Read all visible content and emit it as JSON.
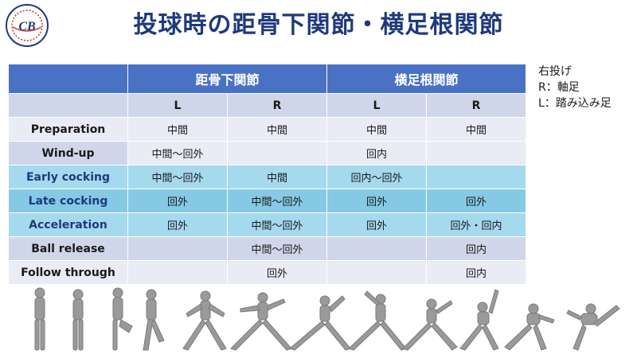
{
  "title": "投球時の距骨下関節・横足根関節",
  "table": {
    "groups": [
      "距骨下関節",
      "横足根関節"
    ],
    "subheaders": [
      "L",
      "R",
      "L",
      "R"
    ],
    "rows": [
      {
        "phase": "Preparation",
        "cells": [
          "中間",
          "中間",
          "中間",
          "中間"
        ]
      },
      {
        "phase": "Wind-up",
        "cells": [
          "中間〜回外",
          "",
          "回内",
          ""
        ]
      },
      {
        "phase": "Early cocking",
        "cells": [
          "中間〜回外",
          "中間",
          "回内〜回外",
          ""
        ]
      },
      {
        "phase": "Late cocking",
        "cells": [
          "回外",
          "中間〜回外",
          "回外",
          "回外"
        ]
      },
      {
        "phase": "Acceleration",
        "cells": [
          "回外",
          "中間〜回外",
          "回外",
          "回外・回内"
        ]
      },
      {
        "phase": "Ball release",
        "cells": [
          "",
          "中間〜回外",
          "",
          "回内"
        ]
      },
      {
        "phase": "Follow through",
        "cells": [
          "",
          "回外",
          "",
          "回内"
        ]
      }
    ]
  },
  "note": {
    "line1": "右投げ",
    "line2": "R：軸足",
    "line3": "L：踏み込み足"
  },
  "colors": {
    "title": "#1f3a7a",
    "header": "#4a72c4",
    "row_gray": "#e9ebf5",
    "row_cyan": "#a5d9ee"
  }
}
